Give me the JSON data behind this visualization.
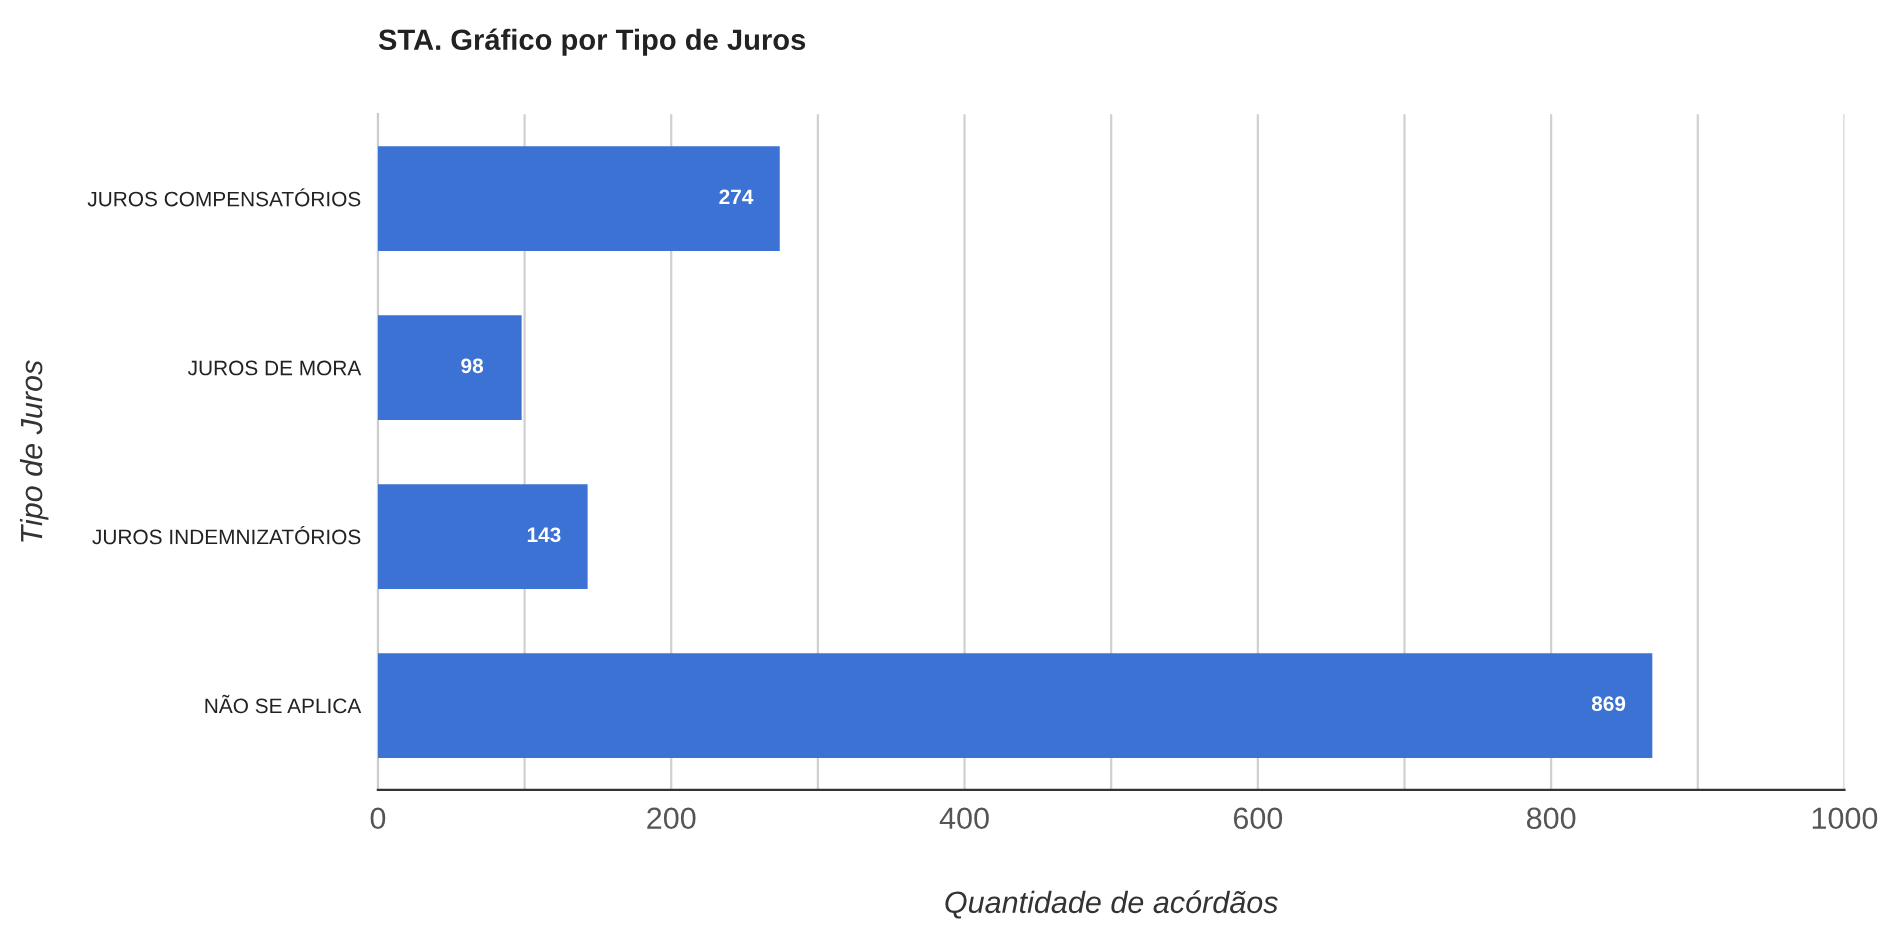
{
  "chart_data": {
    "type": "bar",
    "orientation": "horizontal",
    "title": "STA. Gráfico por Tipo de Juros",
    "xlabel": "Quantidade de acórdãos",
    "ylabel": "Tipo de Juros",
    "categories": [
      "JUROS COMPENSATÓRIOS",
      "JUROS DE MORA",
      "JUROS INDEMNIZATÓRIOS",
      "NÃO SE APLICA"
    ],
    "values": [
      274,
      98,
      143,
      869
    ],
    "color": "#3c72d3",
    "data_labels": true,
    "xlim": [
      0,
      1000
    ],
    "xticks": [
      0,
      {
        "value": 100,
        "label": null
      },
      200,
      {
        "value": 300,
        "label": null
      },
      400,
      {
        "value": 500,
        "label": null
      },
      600,
      {
        "value": 700,
        "label": null
      },
      800,
      {
        "value": 900,
        "label": null
      },
      1000
    ],
    "grid": "x",
    "legend": false
  }
}
